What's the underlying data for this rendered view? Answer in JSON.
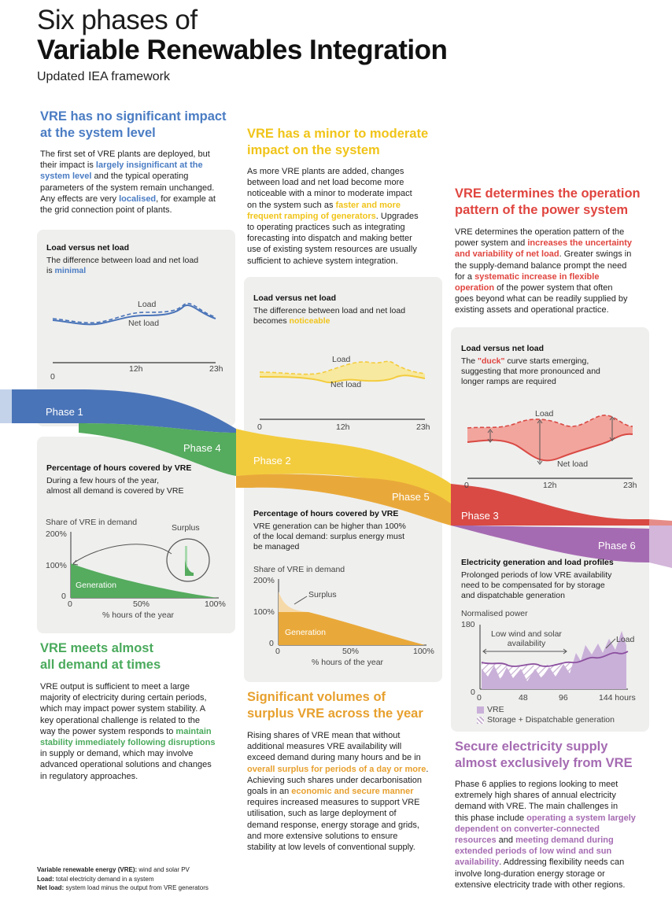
{
  "header": {
    "title_line1": "Six phases of",
    "title_line2": "Variable Renewables Integration",
    "subtitle": "Updated IEA framework"
  },
  "phase1": {
    "heading_line1": "VRE has no significant impact",
    "heading_line2": "at the system level",
    "body": [
      "The first set of VRE plants are deployed, but",
      [
        "their impact is ",
        "largely insignificant at the"
      ],
      [
        "system level",
        " and the typical operating"
      ],
      "parameters of the system remain unchanged.",
      [
        "Any effects are very ",
        "localised",
        ", for example at"
      ],
      "the grid connection point of plants."
    ],
    "card": {
      "title": "Load versus net load",
      "text_line1": "The difference between load and net load",
      "text_line2_pre": "is ",
      "text_line2_hl": "minimal",
      "load_label": "Load",
      "net_load_label": "Net load",
      "x_ticks": [
        "0",
        "12h",
        "23h"
      ]
    },
    "phase_label": "Phase 1"
  },
  "phase2": {
    "heading_line1": "VRE has a minor to moderate",
    "heading_line2": "impact on the system",
    "body": [
      "As more VRE plants are added, changes",
      "between load and net load become more",
      "noticeable with a minor to moderate impact",
      [
        "on the system such as ",
        "faster and more"
      ],
      [
        "frequent ramping of generators",
        ". Upgrades"
      ],
      "to operating practices such as integrating",
      "forecasting into dispatch and making better",
      "use of existing system resources are usually",
      "sufficient to achieve system integration."
    ],
    "card": {
      "title": "Load versus net load",
      "text_line1": "The difference between load and net load",
      "text_line2_pre": "becomes ",
      "text_line2_hl": "noticeable",
      "load_label": "Load",
      "net_load_label": "Net load",
      "x_ticks": [
        "0",
        "12h",
        "23h"
      ]
    },
    "phase_label": "Phase 2"
  },
  "phase3": {
    "heading_line1": "VRE determines the operation",
    "heading_line2": "pattern of the power system",
    "body": [
      "VRE determines the operation pattern of the",
      [
        "power system and ",
        "increases the uncertainty"
      ],
      [
        "and variability of net load",
        ". Greater swings in"
      ],
      "the supply-demand balance prompt the need",
      [
        "for a ",
        "systematic increase in flexible"
      ],
      [
        "operation",
        " of the power system that often"
      ],
      "goes beyond what can be readily supplied by",
      "existing assets and operational practice."
    ],
    "card": {
      "title": "Load versus net load",
      "text_line1_pre": "The ",
      "text_line1_hl": "\"duck\"",
      "text_line1_post": " curve starts emerging,",
      "text_line2": "suggesting that more pronounced and",
      "text_line3": "longer ramps are required",
      "load_label": "Load",
      "net_load_label": "Net load",
      "x_ticks": [
        "0",
        "12h",
        "23h"
      ]
    },
    "phase_label": "Phase 3"
  },
  "phase4": {
    "phase_label": "Phase 4",
    "card": {
      "title": "Percentage of hours covered by VRE",
      "text_line1": "During a few hours of the year,",
      "text_line2": "almost all demand is covered by VRE",
      "y_label": "Share of VRE in demand",
      "y_ticks": [
        "200%",
        "100%",
        "0"
      ],
      "x_ticks": [
        "0",
        "50%",
        "100%"
      ],
      "x_label": "% hours of the year",
      "generation_label": "Generation",
      "surplus_label": "Surplus"
    },
    "heading_line1": "VRE meets almost",
    "heading_line2": "all demand at times",
    "body": [
      "VRE output is sufficient to meet a large",
      "majority of electricity during certain periods,",
      "which may impact power system stability. A",
      "key operational challenge is related to the",
      [
        "way the power system responds to ",
        "maintain"
      ],
      [
        "stability immediately following disruptions"
      ],
      "in supply or demand, which may involve",
      "advanced operational solutions and changes",
      "in regulatory approaches."
    ]
  },
  "phase5": {
    "phase_label": "Phase 5",
    "card": {
      "title": "Percentage of hours covered by VRE",
      "text_line1": "VRE generation can be higher than 100%",
      "text_line2": "of the local demand: surplus energy must",
      "text_line3": "be managed",
      "y_label": "Share of VRE in demand",
      "y_ticks": [
        "200%",
        "100%",
        "0"
      ],
      "x_ticks": [
        "0",
        "50%",
        "100%"
      ],
      "x_label": "% hours of the year",
      "generation_label": "Generation",
      "surplus_label": "Surplus"
    },
    "heading_line1": "Significant volumes of",
    "heading_line2": "surplus VRE across the year",
    "body": [
      "Rising shares of VRE mean that without",
      "additional measures VRE availability will",
      "exceed demand during many hours and be in",
      [
        "overall surplus for periods of a day or more",
        "."
      ],
      "Achieving such shares under decarbonisation",
      [
        "goals in an ",
        "economic and secure manner"
      ],
      "requires increased measures to support VRE",
      "utilisation, such as large deployment of",
      "demand response, energy storage and grids,",
      "and more extensive solutions to ensure",
      "stability at low levels of conventional supply."
    ]
  },
  "phase6": {
    "phase_label": "Phase 6",
    "card": {
      "title": "Electricity generation and load profiles",
      "text_line1": "Prolonged periods of low VRE availability",
      "text_line2": "need to be compensated for by storage",
      "text_line3": "and dispatchable generation",
      "y_label": "Normalised power",
      "y_ticks": [
        "180",
        "0"
      ],
      "x_ticks": [
        "0",
        "48",
        "96",
        "144 hours"
      ],
      "annotation_line1": "Low wind and solar",
      "annotation_line2": "availability",
      "load_label": "Load",
      "legend_vre": "VRE",
      "legend_storage": "Storage + Dispatchable generation"
    },
    "heading_line1": "Secure electricity supply",
    "heading_line2": "almost exclusively from VRE",
    "body": [
      "Phase 6 applies to regions looking to meet",
      "extremely high shares of annual electricity",
      "demand with VRE. The main challenges in",
      [
        "this phase include ",
        "operating a system largely"
      ],
      [
        "dependent on converter-connected"
      ],
      [
        "resources",
        " and ",
        "meeting demand during"
      ],
      [
        "extended periods of low wind and sun"
      ],
      [
        "availability",
        ". Addressing flexibility needs can"
      ],
      "involve long-duration energy storage or",
      "extensive electricity trade with other regions."
    ]
  },
  "glossary": [
    {
      "term": "Variable renewable energy (VRE):",
      "def": " wind and solar PV"
    },
    {
      "term": "Load:",
      "def": " total electricity demand in a system"
    },
    {
      "term": "Net load:",
      "def": " system load minus the output from VRE generators"
    }
  ],
  "colors": {
    "phase1": "#4a74b8",
    "phase2": "#f3cc3d",
    "phase3": "#d94a44",
    "phase4": "#55ab5e",
    "phase5": "#e9a93a",
    "phase6": "#a56bb2"
  }
}
